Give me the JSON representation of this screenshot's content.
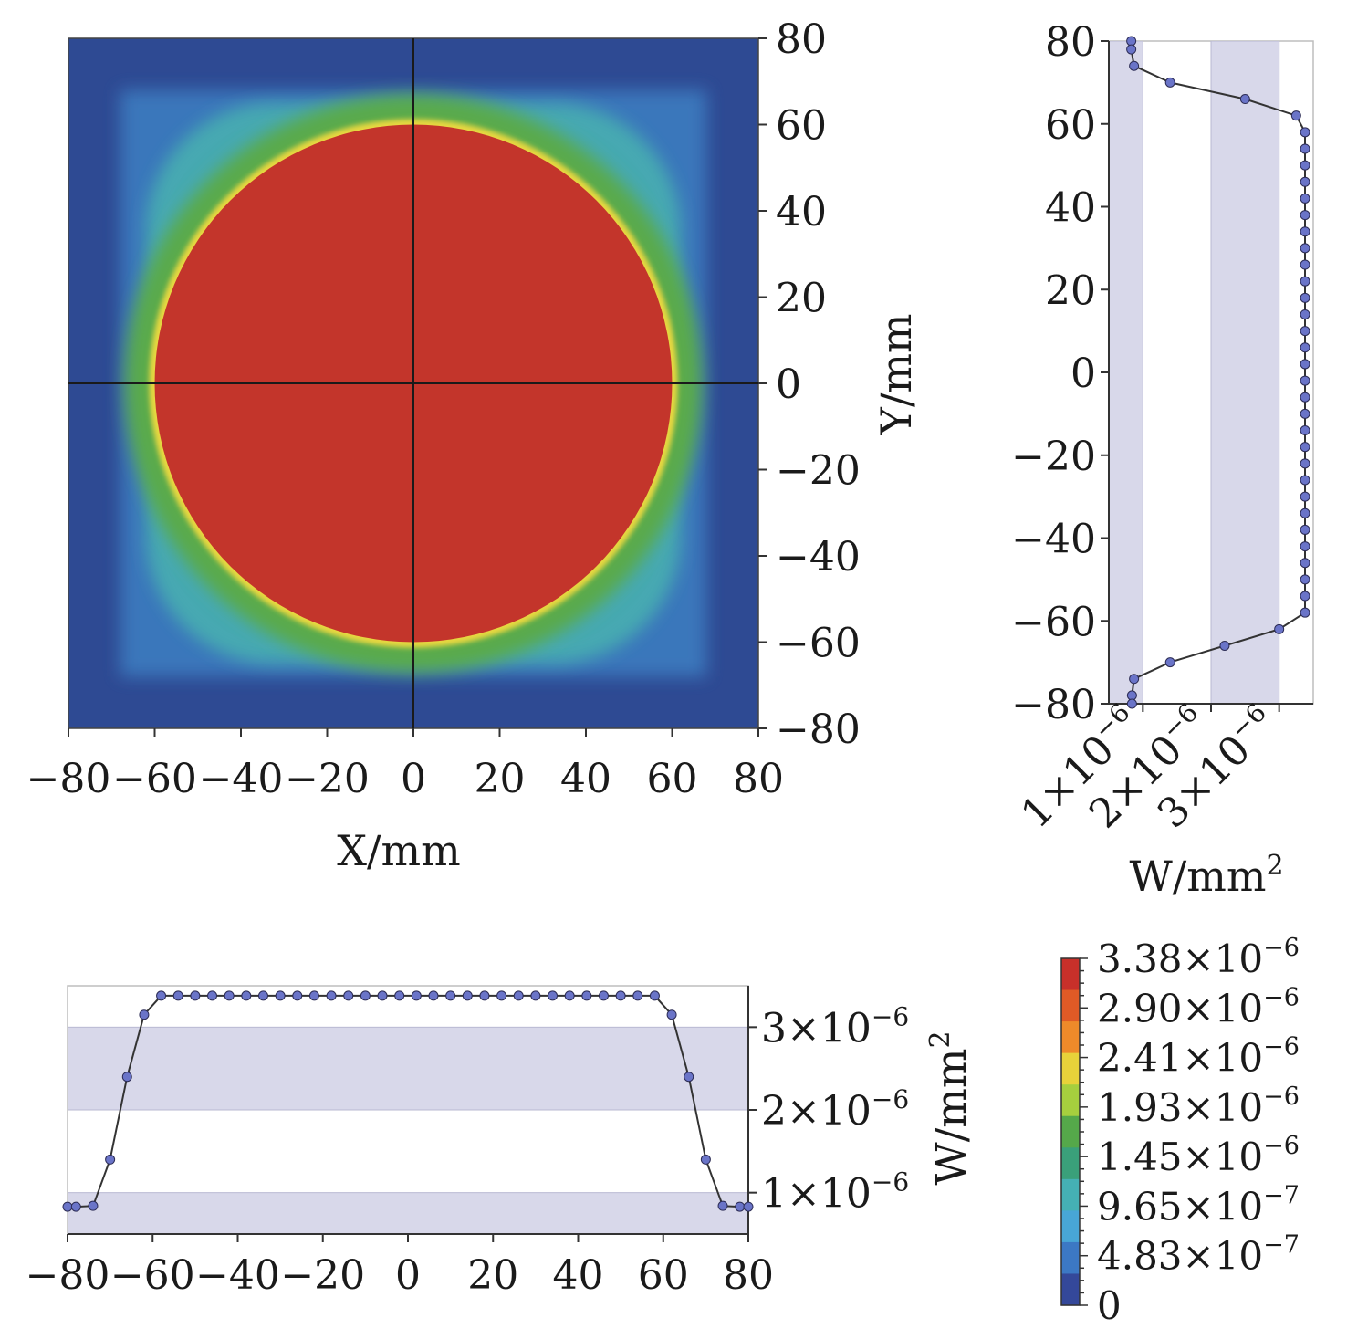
{
  "chart_data": [
    {
      "type": "heatmap",
      "xlabel": "X/mm",
      "ylabel": "Y/mm",
      "xlim": [
        -80,
        80
      ],
      "ylim": [
        -80,
        80
      ],
      "x_ticks": [
        "−80",
        "−60",
        "−40",
        "−20",
        "0",
        "20",
        "40",
        "60",
        "80"
      ],
      "y_ticks": [
        "80",
        "60",
        "40",
        "20",
        "0",
        "−20",
        "−40",
        "−60",
        "−80"
      ],
      "grid": false,
      "crosshair": {
        "x": 0,
        "y": 0
      },
      "spot": {
        "core_radius_mm": 60,
        "core_level_W_per_mm2": 3.38e-06,
        "halo_extent_mm": 68,
        "background_W_per_mm2": 0
      }
    },
    {
      "type": "line",
      "orientation": "vertical-profile",
      "ylim": [
        -80,
        80
      ],
      "xlim": [
        5e-07,
        3.5e-06
      ],
      "y_ticks": [
        "80",
        "60",
        "40",
        "20",
        "0",
        "−20",
        "−40",
        "−60",
        "−80"
      ],
      "x_ticks": [
        "1×10",
        "2×10",
        "3×10"
      ],
      "tick_exponent": "−6",
      "xlabel": "W/mm",
      "xlabel_sup": "2",
      "series": [
        {
          "y": [
            80,
            78,
            74,
            70,
            66,
            62,
            58,
            54,
            50,
            46,
            42,
            38,
            34,
            30,
            26,
            22,
            18,
            14,
            10,
            6,
            2,
            -2,
            -6,
            -10,
            -14,
            -18,
            -22,
            -26,
            -30,
            -34,
            -38,
            -42,
            -46,
            -50,
            -54,
            -58,
            -62,
            -66,
            -70,
            -74,
            -78,
            -80
          ],
          "values": [
            8.3e-07,
            8.3e-07,
            8.7e-07,
            1.4e-06,
            2.5e-06,
            3.25e-06,
            3.38e-06,
            3.38e-06,
            3.38e-06,
            3.38e-06,
            3.38e-06,
            3.38e-06,
            3.38e-06,
            3.38e-06,
            3.38e-06,
            3.38e-06,
            3.38e-06,
            3.38e-06,
            3.38e-06,
            3.38e-06,
            3.38e-06,
            3.38e-06,
            3.38e-06,
            3.38e-06,
            3.38e-06,
            3.38e-06,
            3.38e-06,
            3.38e-06,
            3.38e-06,
            3.38e-06,
            3.38e-06,
            3.38e-06,
            3.38e-06,
            3.38e-06,
            3.38e-06,
            3.38e-06,
            3e-06,
            2.2e-06,
            1.4e-06,
            8.7e-07,
            8.4e-07,
            8.4e-07
          ]
        }
      ],
      "bands": [
        [
          5e-07,
          1e-06
        ],
        [
          2e-06,
          3e-06
        ]
      ]
    },
    {
      "type": "line",
      "orientation": "horizontal-profile",
      "xlim": [
        -80,
        80
      ],
      "ylim": [
        5e-07,
        3.5e-06
      ],
      "x_ticks": [
        "−80",
        "−60",
        "−40",
        "−20",
        "0",
        "20",
        "40",
        "60",
        "80"
      ],
      "y_ticks": [
        "3×10",
        "2×10",
        "1×10"
      ],
      "tick_exponent": "−6",
      "ylabel": "W/mm",
      "ylabel_sup": "2",
      "series": [
        {
          "x": [
            -80,
            -78,
            -74,
            -70,
            -66,
            -62,
            -58,
            -54,
            -50,
            -46,
            -42,
            -38,
            -34,
            -30,
            -26,
            -22,
            -18,
            -14,
            -10,
            -6,
            -2,
            2,
            6,
            10,
            14,
            18,
            22,
            26,
            30,
            34,
            38,
            42,
            46,
            50,
            54,
            58,
            62,
            66,
            70,
            74,
            78,
            80
          ],
          "values": [
            8.3e-07,
            8.3e-07,
            8.4e-07,
            1.4e-06,
            2.4e-06,
            3.15e-06,
            3.38e-06,
            3.38e-06,
            3.38e-06,
            3.38e-06,
            3.38e-06,
            3.38e-06,
            3.38e-06,
            3.38e-06,
            3.38e-06,
            3.38e-06,
            3.38e-06,
            3.38e-06,
            3.38e-06,
            3.38e-06,
            3.38e-06,
            3.38e-06,
            3.38e-06,
            3.38e-06,
            3.38e-06,
            3.38e-06,
            3.38e-06,
            3.38e-06,
            3.38e-06,
            3.38e-06,
            3.38e-06,
            3.38e-06,
            3.38e-06,
            3.38e-06,
            3.38e-06,
            3.38e-06,
            3.15e-06,
            2.4e-06,
            1.4e-06,
            8.4e-07,
            8.3e-07,
            8.3e-07
          ]
        }
      ],
      "bands": [
        [
          5e-07,
          1e-06
        ],
        [
          2e-06,
          3e-06
        ]
      ]
    },
    {
      "type": "colorbar",
      "labels": [
        "3.38×10",
        "2.90×10",
        "2.41×10",
        "1.93×10",
        "1.45×10",
        "9.65×10",
        "4.83×10",
        "0"
      ],
      "exponents": [
        "−6",
        "−6",
        "−6",
        "−6",
        "−6",
        "−7",
        "−7",
        ""
      ],
      "colors": [
        "#c8302a",
        "#e05a26",
        "#ee8a2a",
        "#e8d23a",
        "#a6cf3e",
        "#55a84a",
        "#3aa07a",
        "#45b0b4",
        "#48a6d6",
        "#3c78c4",
        "#34489a"
      ]
    }
  ],
  "colors": {
    "spot_core": "#c3352b",
    "halo_green": "#5aaa4c",
    "halo_teal": "#4ab2b0",
    "halo_blue": "#3d7fc2",
    "background": "#2e4a93",
    "band": "#d8d8ea",
    "profile_marker": "#6a74c8",
    "profile_line": "#333333"
  }
}
